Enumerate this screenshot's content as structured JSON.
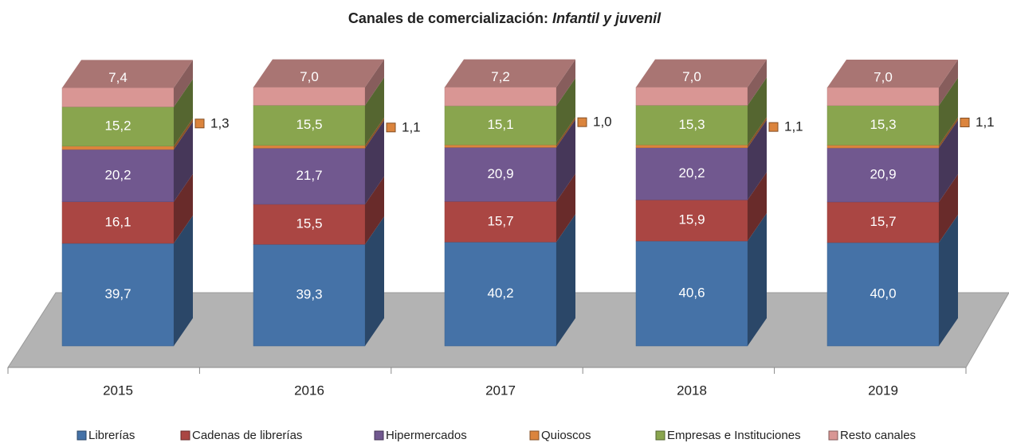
{
  "chart_data": {
    "type": "bar",
    "stacked": true,
    "three_d": true,
    "title": "Canales de comercialización:",
    "subtitle": "Infantil y juvenil",
    "categories": [
      "2015",
      "2016",
      "2017",
      "2018",
      "2019"
    ],
    "series": [
      {
        "name": "Librerías",
        "color": "#4572a7",
        "values": [
          39.7,
          39.3,
          40.2,
          40.6,
          40.0
        ],
        "value_labels": [
          "39,7",
          "39,3",
          "40,2",
          "40,6",
          "40,0"
        ]
      },
      {
        "name": "Cadenas de librerías",
        "color": "#aa4643",
        "values": [
          16.1,
          15.5,
          15.7,
          15.9,
          15.7
        ],
        "value_labels": [
          "16,1",
          "15,5",
          "15,7",
          "15,9",
          "15,7"
        ]
      },
      {
        "name": "Hipermercados",
        "color": "#71588f",
        "values": [
          20.2,
          21.7,
          20.9,
          20.2,
          20.9
        ],
        "value_labels": [
          "20,2",
          "21,7",
          "20,9",
          "20,2",
          "20,9"
        ]
      },
      {
        "name": "Quioscos",
        "color": "#db843d",
        "values": [
          1.3,
          1.1,
          1.0,
          1.1,
          1.1
        ],
        "value_labels": [
          "1,3",
          "1,1",
          "1,0",
          "1,1",
          "1,1"
        ]
      },
      {
        "name": "Empresas e Instituciones",
        "color": "#89a54e",
        "values": [
          15.2,
          15.5,
          15.1,
          15.3,
          15.3
        ],
        "value_labels": [
          "15,2",
          "15,5",
          "15,1",
          "15,3",
          "15,3"
        ]
      },
      {
        "name": "Resto canales",
        "color": "#d99694",
        "values": [
          7.4,
          7.0,
          7.2,
          7.0,
          7.0
        ],
        "value_labels": [
          "7,4",
          "7,0",
          "7,2",
          "7,0",
          "7,0"
        ]
      }
    ]
  }
}
